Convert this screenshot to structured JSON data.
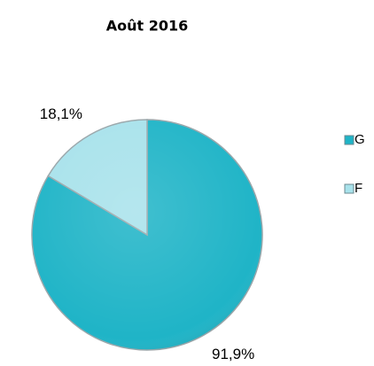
{
  "chart_data": {
    "type": "pie",
    "title": "Août 2016",
    "categories": [
      "G",
      "F"
    ],
    "values": [
      91.9,
      18.1
    ],
    "value_labels": [
      "91,9%",
      "18,1%"
    ],
    "colors": [
      "#1fb4c7",
      "#a8e2eb"
    ],
    "legend": "right"
  }
}
